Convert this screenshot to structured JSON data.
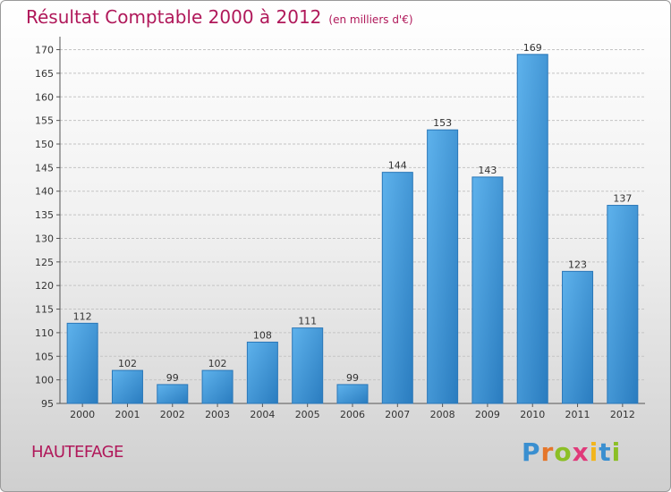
{
  "chart_data": {
    "type": "bar",
    "title": "Résultat Comptable 2000 à 2012",
    "subtitle": "(en milliers d'€)",
    "categories": [
      "2000",
      "2001",
      "2002",
      "2003",
      "2004",
      "2005",
      "2006",
      "2007",
      "2008",
      "2009",
      "2010",
      "2011",
      "2012"
    ],
    "values": [
      112,
      102,
      99,
      102,
      108,
      111,
      99,
      144,
      153,
      143,
      169,
      123,
      137
    ],
    "yticks": [
      95,
      100,
      105,
      110,
      115,
      120,
      125,
      130,
      135,
      140,
      145,
      150,
      155,
      160,
      165,
      170
    ],
    "ylim": [
      95,
      172
    ],
    "xlabel": "",
    "ylabel": "",
    "grid": true,
    "bar_color": "#3d93d6"
  },
  "commune": "HAUTEFAGE",
  "brand": {
    "letters": [
      "P",
      "r",
      "o",
      "x",
      "i",
      "t",
      "i"
    ],
    "colors": [
      "#3a8fd0",
      "#e5762a",
      "#8cbf26",
      "#e03a7a",
      "#f2b51c",
      "#3a8fd0",
      "#8cbf26"
    ]
  }
}
